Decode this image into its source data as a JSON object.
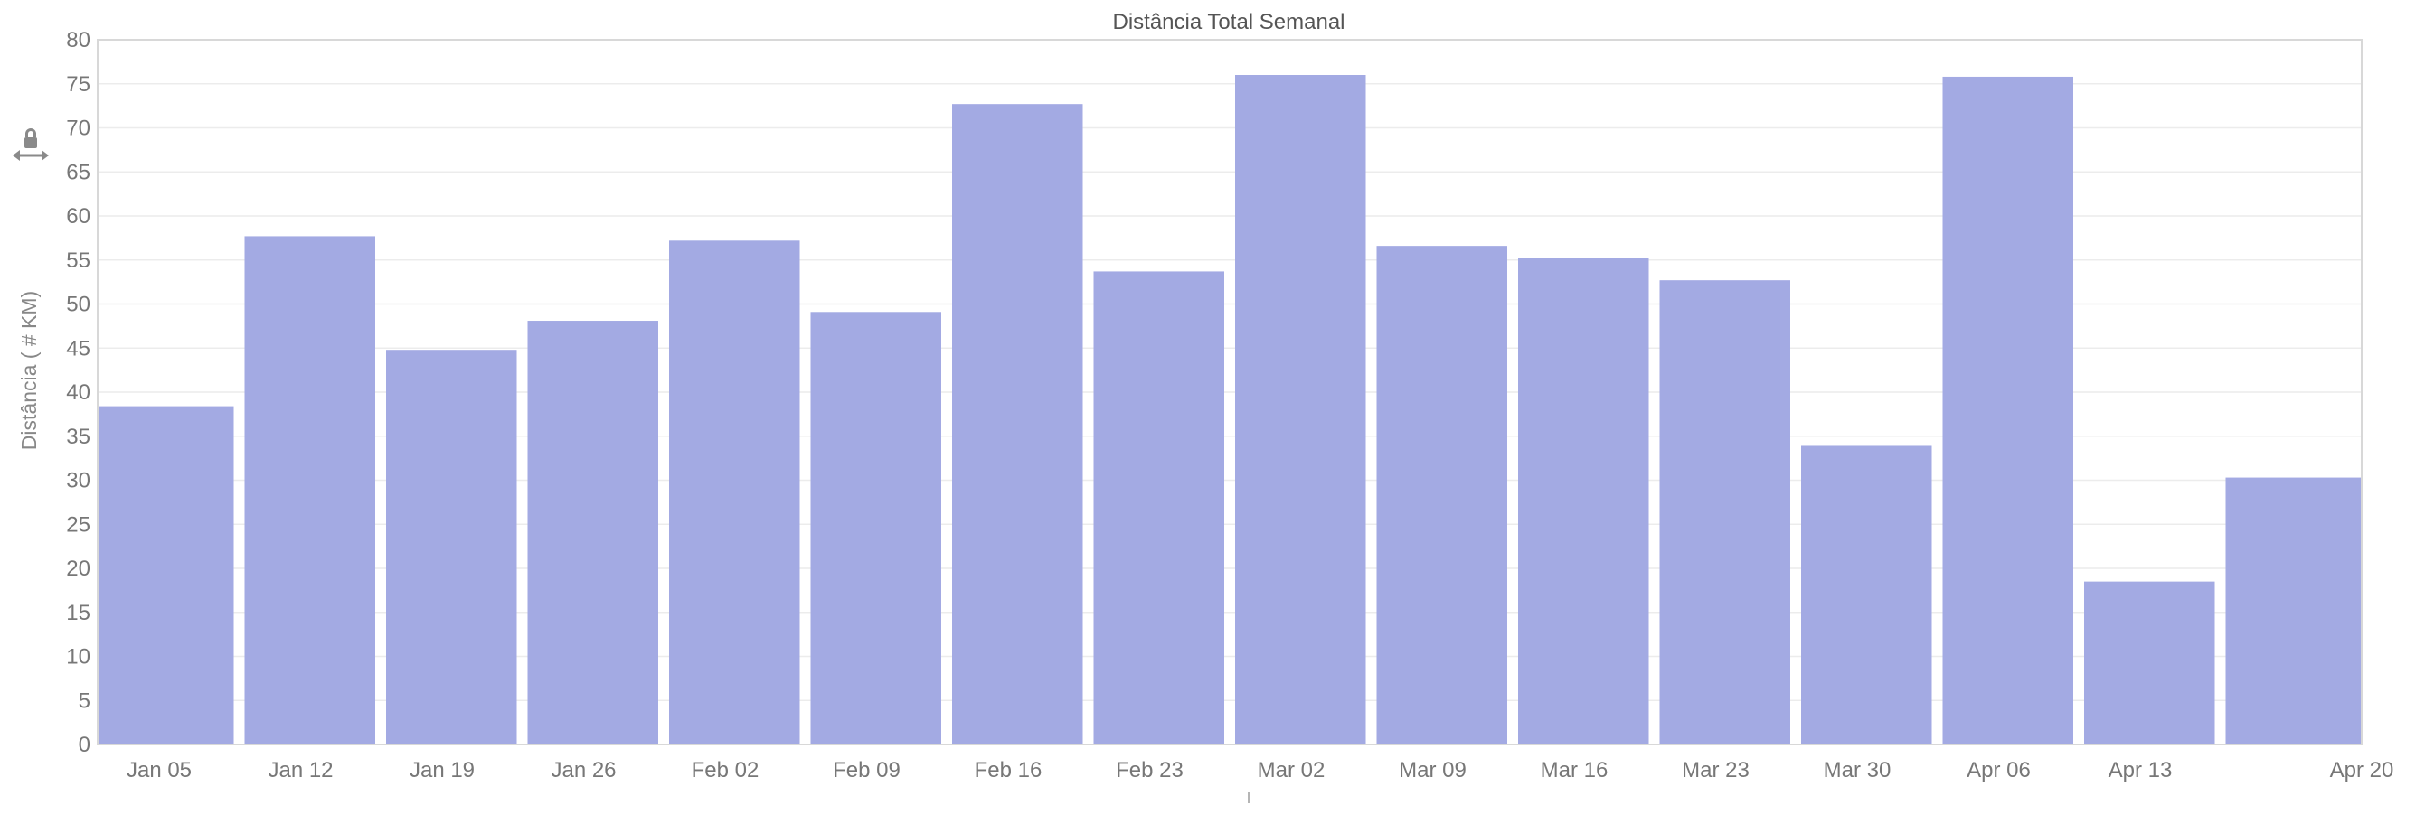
{
  "chart_data": {
    "type": "bar",
    "title": "Distância Total Semanal",
    "xlabel": "",
    "ylabel": "Distância ( # KM)",
    "categories": [
      "Jan 05",
      "Jan 12",
      "Jan 19",
      "Jan 26",
      "Feb 02",
      "Feb 09",
      "Feb 16",
      "Feb 23",
      "Mar 02",
      "Mar 09",
      "Mar 16",
      "Mar 23",
      "Mar 30",
      "Apr 06",
      "Apr 13",
      "Apr 20"
    ],
    "values": [
      38.4,
      57.7,
      44.8,
      48.1,
      57.2,
      49.1,
      72.7,
      53.7,
      76.0,
      56.6,
      55.2,
      52.7,
      33.9,
      75.8,
      18.5,
      30.3
    ],
    "ylim": [
      0,
      80
    ],
    "yticks": [
      0,
      5,
      10,
      15,
      20,
      25,
      30,
      35,
      40,
      45,
      50,
      55,
      60,
      65,
      70,
      75,
      80
    ],
    "grid": true,
    "legend": "none",
    "bar_color": "#a3aae3"
  },
  "toolbar": {
    "pan_lock_icon": "lock-horizontal-pan-icon"
  }
}
